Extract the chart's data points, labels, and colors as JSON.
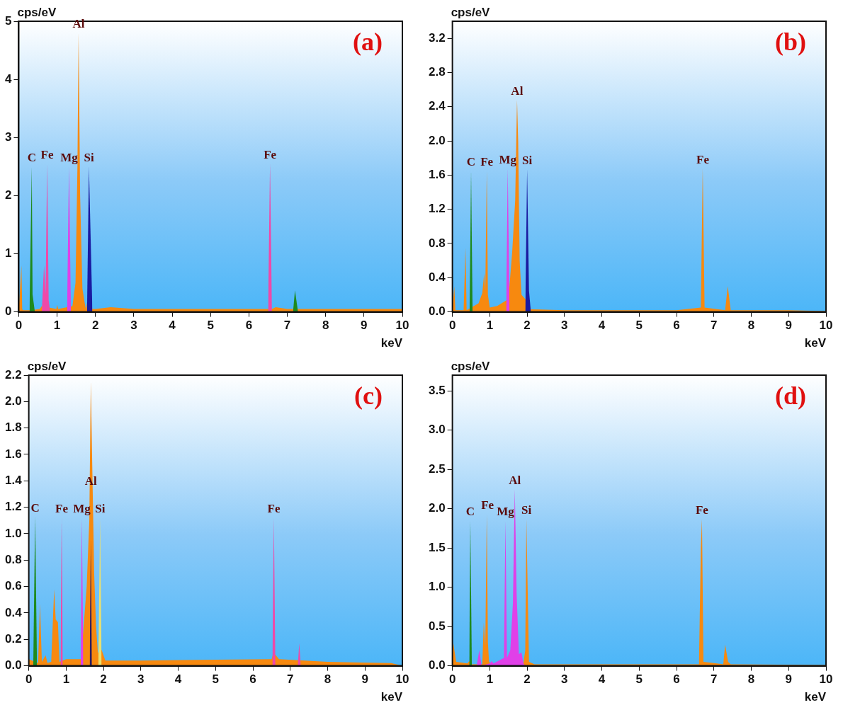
{
  "chart_data": [
    {
      "type": "area",
      "title": "(a)",
      "xlabel": "keV",
      "ylabel": "cps/eV",
      "xlim": [
        0,
        10
      ],
      "ylim": [
        0,
        5
      ],
      "xticks": [
        0,
        1,
        2,
        3,
        4,
        5,
        6,
        7,
        8,
        9,
        10
      ],
      "yticks": [
        0,
        1,
        2,
        3,
        4,
        5
      ],
      "legend": false,
      "series": [
        {
          "color": "#f7890f",
          "x": [
            0,
            0.07,
            0.09,
            0.11,
            0.3,
            0.55,
            0.6,
            0.98,
            1.0,
            1.03,
            1.4,
            1.48,
            1.53,
            1.56,
            1.6,
            1.66,
            1.72,
            1.75,
            1.78,
            1.9,
            2.0,
            2.4,
            3.0,
            6.6,
            6.7,
            7.0,
            10
          ],
          "values": [
            0.02,
            0.8,
            0.05,
            0.03,
            0.03,
            0.05,
            0.1,
            0.05,
            0.12,
            0.05,
            0.1,
            0.5,
            2.5,
            4.8,
            2.0,
            0.4,
            0.15,
            0.05,
            0.15,
            0.05,
            0.05,
            0.08,
            0.05,
            0.05,
            0.08,
            0.05,
            0.05
          ]
        },
        {
          "color": "#1e8a1e",
          "x": [
            0.28,
            0.34,
            0.36,
            0.42,
            5,
            7.15,
            7.2,
            7.28
          ],
          "values": [
            0,
            2.5,
            0.3,
            0,
            null,
            0,
            0.37,
            0
          ]
        },
        {
          "color": "#f048a8",
          "x": [
            0.6,
            0.66,
            0.7,
            0.74,
            0.78,
            0.82,
            5,
            6.5,
            6.55,
            6.6
          ],
          "values": [
            0,
            0.8,
            0.3,
            2.55,
            0.2,
            0,
            null,
            0,
            2.55,
            0
          ]
        },
        {
          "color": "#e040e8",
          "x": [
            1.26,
            1.31,
            1.36
          ],
          "values": [
            0,
            2.5,
            0
          ]
        },
        {
          "color": "#1a1aa0",
          "x": [
            1.78,
            1.83,
            1.92
          ],
          "values": [
            0,
            2.5,
            0
          ]
        }
      ],
      "annotations": [
        {
          "text": "C",
          "x": 0.34,
          "y": 2.5
        },
        {
          "text": "Fe",
          "x": 0.74,
          "y": 2.55
        },
        {
          "text": "Mg",
          "x": 1.31,
          "y": 2.5
        },
        {
          "text": "Al",
          "x": 1.56,
          "y": 4.8
        },
        {
          "text": "Si",
          "x": 1.83,
          "y": 2.5
        },
        {
          "text": "Fe",
          "x": 6.55,
          "y": 2.55
        }
      ]
    },
    {
      "type": "area",
      "title": "(b)",
      "xlabel": "keV",
      "ylabel": "cps/eV",
      "xlim": [
        0,
        10
      ],
      "ylim": [
        0,
        3.4
      ],
      "xticks": [
        0,
        1,
        2,
        3,
        4,
        5,
        6,
        7,
        8,
        9,
        10
      ],
      "yticks": [
        {
          "value": 0,
          "label": "0.0"
        },
        0.4,
        0.8,
        1.2,
        1.6,
        {
          "value": 2,
          "label": "2.0"
        },
        2.4,
        2.8,
        3.2
      ],
      "legend": false,
      "series": [
        {
          "color": "#f7890f",
          "x": [
            0,
            0.05,
            0.08,
            0.3,
            0.35,
            0.38,
            0.7,
            0.8,
            0.85,
            0.88,
            0.92,
            0.95,
            1.0,
            1.2,
            1.5,
            1.6,
            1.68,
            1.73,
            1.76,
            1.8,
            1.85,
            1.95,
            2.1,
            3,
            6.0,
            6.65,
            6.7,
            6.75,
            7.3,
            7.37,
            7.45,
            9,
            10
          ],
          "values": [
            0.02,
            0.3,
            0.02,
            0.02,
            0.75,
            0.02,
            0.1,
            0.22,
            0.45,
            0.25,
            1.65,
            0.2,
            0.05,
            0.07,
            0.15,
            0.7,
            1.3,
            2.48,
            2.0,
            0.6,
            0.2,
            0.15,
            0.03,
            0.02,
            0.02,
            0.05,
            1.68,
            0.05,
            0.02,
            0.3,
            0.02,
            0.02,
            0.01
          ]
        },
        {
          "color": "#1e8a1e",
          "x": [
            0.46,
            0.5,
            0.54
          ],
          "values": [
            0,
            1.65,
            0
          ]
        },
        {
          "color": "#e040e8",
          "x": [
            1.44,
            1.48,
            1.53
          ],
          "values": [
            0,
            1.68,
            0
          ]
        },
        {
          "color": "#1a1aa0",
          "x": [
            1.95,
            2.0,
            2.05,
            2.1
          ],
          "values": [
            0,
            1.67,
            0.25,
            0
          ]
        }
      ],
      "annotations": [
        {
          "text": "C",
          "x": 0.5,
          "y": 1.65
        },
        {
          "text": "Fe",
          "x": 0.92,
          "y": 1.65
        },
        {
          "text": "Mg",
          "x": 1.48,
          "y": 1.68
        },
        {
          "text": "Al",
          "x": 1.73,
          "y": 2.48
        },
        {
          "text": "Si",
          "x": 2.0,
          "y": 1.67
        },
        {
          "text": "Fe",
          "x": 6.7,
          "y": 1.68
        }
      ]
    },
    {
      "type": "area",
      "title": "(c)",
      "xlabel": "keV",
      "ylabel": "cps/eV",
      "xlim": [
        0,
        10
      ],
      "ylim": [
        0,
        2.2
      ],
      "xticks": [
        0,
        1,
        2,
        3,
        4,
        5,
        6,
        7,
        8,
        9,
        10
      ],
      "yticks": [
        {
          "value": 0,
          "label": "0.0"
        },
        0.2,
        0.4,
        0.6,
        0.8,
        {
          "value": 1,
          "label": "1.0"
        },
        1.2,
        1.4,
        1.6,
        1.8,
        {
          "value": 2,
          "label": "2.0"
        },
        2.2
      ],
      "legend": false,
      "series": [
        {
          "color": "#f7890f",
          "x": [
            0,
            0.25,
            0.3,
            0.35,
            0.45,
            0.5,
            0.6,
            0.68,
            0.72,
            0.78,
            0.82,
            1.0,
            1.4,
            1.55,
            1.62,
            1.66,
            1.7,
            1.75,
            1.8,
            1.85,
            1.95,
            2.05,
            3,
            6.5,
            6.55,
            6.7,
            8,
            9.7,
            10
          ],
          "values": [
            0.05,
            0.02,
            0.47,
            0.03,
            0.08,
            0.02,
            0.03,
            0.58,
            0.35,
            0.33,
            0.03,
            0.05,
            0.05,
            0.6,
            1.1,
            2.15,
            1.5,
            0.7,
            0.3,
            0.1,
            0.12,
            0.04,
            0.04,
            0.05,
            0.1,
            0.05,
            0.03,
            0.02,
            0
          ]
        },
        {
          "color": "#1e8a1e",
          "x": [
            0.12,
            0.17,
            0.22
          ],
          "values": [
            0,
            1.13,
            0
          ]
        },
        {
          "color": "#f048a8",
          "x": [
            0.85,
            0.88,
            0.91,
            5,
            6.52,
            6.56,
            6.6,
            7.2,
            7.24,
            7.28
          ],
          "values": [
            0,
            1.12,
            0,
            null,
            0,
            1.12,
            0,
            0,
            0.17,
            0
          ]
        },
        {
          "color": "#e040e8",
          "x": [
            1.39,
            1.42,
            1.46
          ],
          "values": [
            0,
            1.12,
            0
          ]
        },
        {
          "color": "#2b1b5e",
          "x": [
            1.63,
            1.66,
            1.69
          ],
          "values": [
            0,
            0.95,
            0
          ]
        },
        {
          "color": "#e8e070",
          "x": [
            1.86,
            1.91,
            1.95
          ],
          "values": [
            0,
            1.12,
            0
          ]
        }
      ],
      "annotations": [
        {
          "text": "C",
          "x": 0.17,
          "y": 1.13
        },
        {
          "text": "Fe",
          "x": 0.88,
          "y": 1.12
        },
        {
          "text": "Mg",
          "x": 1.42,
          "y": 1.12
        },
        {
          "text": "Al",
          "x": 1.66,
          "y": 1.33
        },
        {
          "text": "Si",
          "x": 1.91,
          "y": 1.12
        },
        {
          "text": "Fe",
          "x": 6.56,
          "y": 1.12
        }
      ]
    },
    {
      "type": "area",
      "title": "(d)",
      "xlabel": "keV",
      "ylabel": "cps/eV",
      "xlim": [
        0,
        10
      ],
      "ylim": [
        0,
        3.7
      ],
      "xticks": [
        0,
        1,
        2,
        3,
        4,
        5,
        6,
        7,
        8,
        9,
        10
      ],
      "yticks": [
        {
          "value": 0,
          "label": "0.0"
        },
        0.5,
        {
          "value": 1,
          "label": "1.0"
        },
        1.5,
        {
          "value": 2,
          "label": "2.0"
        },
        2.5,
        {
          "value": 3,
          "label": "3.0"
        },
        3.5
      ],
      "legend": false,
      "series": [
        {
          "color": "#f7890f",
          "x": [
            0,
            0.02,
            0.1,
            0.4,
            0.45,
            0.5,
            0.8,
            0.84,
            0.88,
            0.92,
            0.95,
            0.98,
            1.05,
            1.9,
            1.95,
            1.98,
            2.05,
            2.2,
            3,
            6.6,
            6.65,
            6.68,
            6.72,
            7.25,
            7.3,
            7.38,
            7.45,
            10
          ],
          "values": [
            0.02,
            0.3,
            0.05,
            0.03,
            0.06,
            0.02,
            0.02,
            0.55,
            0.25,
            1.93,
            0.3,
            0.05,
            0.02,
            0.03,
            0.2,
            1.87,
            0.05,
            0.02,
            0.02,
            0.02,
            1.5,
            1.87,
            0.05,
            0.02,
            0.27,
            0.05,
            0.02,
            0.01
          ]
        },
        {
          "color": "#1e8a1e",
          "x": [
            0.45,
            0.48,
            0.52
          ],
          "values": [
            0,
            1.85,
            0
          ]
        },
        {
          "color": "#e040e8",
          "x": [
            0.65,
            0.72,
            0.78,
            1.0,
            1.05,
            1.1,
            1.38,
            1.42,
            1.46,
            1.55,
            1.62,
            1.67,
            1.72,
            1.78,
            1.85,
            1.9,
            1.95
          ],
          "values": [
            0,
            0.2,
            0,
            0.03,
            0.06,
            0.03,
            0.1,
            1.85,
            0.1,
            0.2,
            0.8,
            2.25,
            0.9,
            0.15,
            0.17,
            0.03,
            0
          ]
        }
      ],
      "annotations": [
        {
          "text": "C",
          "x": 0.48,
          "y": 1.85
        },
        {
          "text": "Fe",
          "x": 0.94,
          "y": 1.93
        },
        {
          "text": "Mg",
          "x": 1.42,
          "y": 1.85
        },
        {
          "text": "Al",
          "x": 1.67,
          "y": 2.25
        },
        {
          "text": "Si",
          "x": 1.98,
          "y": 1.87
        },
        {
          "text": "Fe",
          "x": 6.68,
          "y": 1.87
        }
      ]
    }
  ]
}
